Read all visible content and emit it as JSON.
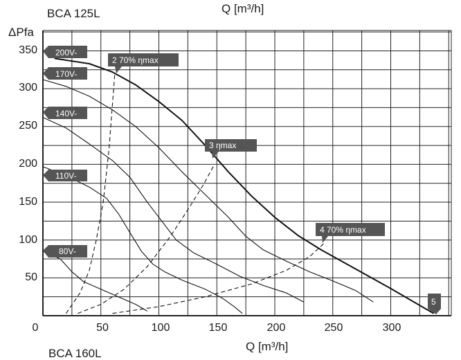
{
  "chart_data": {
    "type": "line",
    "title": "BCA 125L",
    "subtitle": "BCA 160L",
    "xlabel_top": "Q [m³/h]",
    "xlabel": "Q [m³/h]",
    "ylabel": "ΔPfa",
    "xlim": [
      0,
      350
    ],
    "ylim": [
      0,
      370
    ],
    "grid": true,
    "x_ticks": [
      "0",
      "50",
      "100",
      "150",
      "200",
      "250",
      "300"
    ],
    "y_ticks": [
      "50",
      "100",
      "150",
      "200",
      "250",
      "300",
      "350"
    ],
    "speed_curves": [
      {
        "name": "200V-",
        "points": [
          [
            10,
            340
          ],
          [
            40,
            333
          ],
          [
            60,
            322
          ],
          [
            80,
            305
          ],
          [
            100,
            283
          ],
          [
            120,
            258
          ],
          [
            140,
            225
          ],
          [
            160,
            190
          ],
          [
            180,
            158
          ],
          [
            200,
            130
          ],
          [
            220,
            106
          ],
          [
            240,
            87
          ],
          [
            260,
            70
          ],
          [
            280,
            53
          ],
          [
            300,
            36
          ],
          [
            320,
            18
          ],
          [
            337,
            3
          ]
        ]
      },
      {
        "name": "170V-",
        "points": [
          [
            0,
            312
          ],
          [
            20,
            303
          ],
          [
            40,
            290
          ],
          [
            60,
            272
          ],
          [
            80,
            250
          ],
          [
            100,
            222
          ],
          [
            120,
            190
          ],
          [
            140,
            160
          ],
          [
            160,
            130
          ],
          [
            175,
            105
          ],
          [
            190,
            87
          ],
          [
            210,
            72
          ],
          [
            230,
            58
          ],
          [
            250,
            46
          ],
          [
            270,
            33
          ],
          [
            285,
            18
          ]
        ]
      },
      {
        "name": "140V-",
        "points": [
          [
            0,
            262
          ],
          [
            20,
            248
          ],
          [
            40,
            227
          ],
          [
            60,
            205
          ],
          [
            75,
            183
          ],
          [
            90,
            150
          ],
          [
            105,
            120
          ],
          [
            115,
            100
          ],
          [
            130,
            83
          ],
          [
            150,
            68
          ],
          [
            170,
            52
          ],
          [
            190,
            40
          ],
          [
            210,
            30
          ],
          [
            225,
            18
          ]
        ]
      },
      {
        "name": "110V-",
        "points": [
          [
            0,
            197
          ],
          [
            20,
            185
          ],
          [
            40,
            170
          ],
          [
            55,
            155
          ],
          [
            65,
            135
          ],
          [
            75,
            110
          ],
          [
            85,
            85
          ],
          [
            95,
            68
          ],
          [
            105,
            58
          ],
          [
            120,
            47
          ],
          [
            140,
            35
          ],
          [
            155,
            23
          ],
          [
            165,
            12
          ],
          [
            172,
            3
          ]
        ]
      },
      {
        "name": "80V-",
        "points": [
          [
            0,
            85
          ],
          [
            15,
            75
          ],
          [
            25,
            58
          ],
          [
            35,
            45
          ],
          [
            50,
            35
          ],
          [
            65,
            25
          ],
          [
            80,
            15
          ],
          [
            90,
            6
          ]
        ]
      }
    ],
    "efficiency_curves": [
      {
        "name": "2 70% ηmax",
        "points": [
          [
            20,
            3
          ],
          [
            32,
            30
          ],
          [
            40,
            60
          ],
          [
            46,
            100
          ],
          [
            52,
            150
          ],
          [
            57,
            220
          ],
          [
            60,
            280
          ],
          [
            62,
            320
          ]
        ]
      },
      {
        "name": "3 ηmax",
        "points": [
          [
            30,
            3
          ],
          [
            50,
            15
          ],
          [
            70,
            35
          ],
          [
            90,
            65
          ],
          [
            110,
            105
          ],
          [
            125,
            140
          ],
          [
            138,
            172
          ],
          [
            148,
            200
          ]
        ]
      },
      {
        "name": "4 70% ηmax",
        "points": [
          [
            60,
            3
          ],
          [
            100,
            12
          ],
          [
            140,
            25
          ],
          [
            180,
            42
          ],
          [
            210,
            60
          ],
          [
            230,
            78
          ],
          [
            242,
            95
          ]
        ]
      }
    ],
    "labels": {
      "v200": "200V-",
      "v170": "170V-",
      "v140": "140V-",
      "v110": "110V-",
      "v80": "80V-",
      "p2": "2   70% ηmax",
      "p3": "3     ηmax",
      "p4": "4   70% ηmax",
      "p5": "5"
    }
  }
}
